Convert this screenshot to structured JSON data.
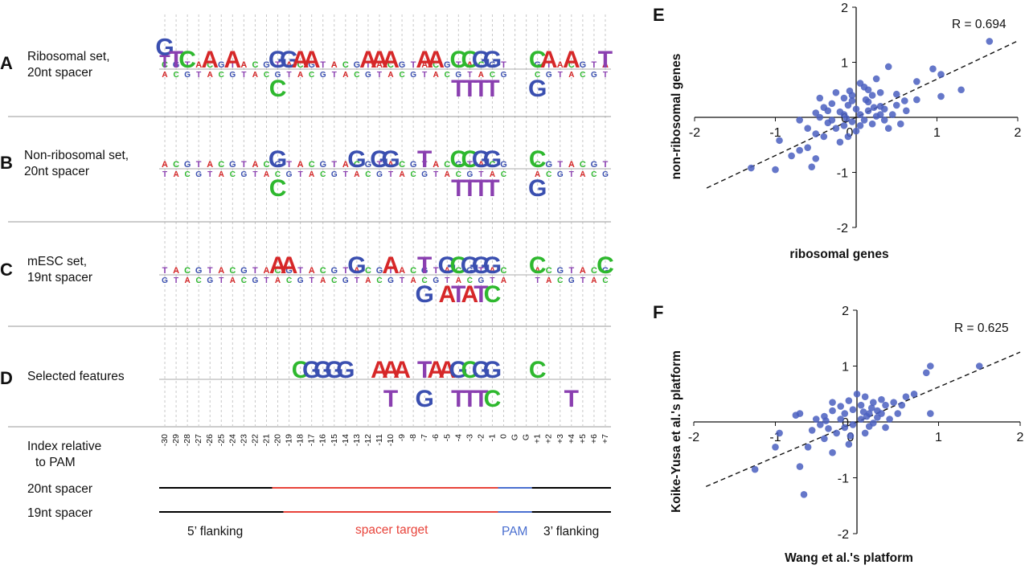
{
  "panels": {
    "A": {
      "letter": "A",
      "line1": "Ribosomal set,",
      "line2": "20nt spacer"
    },
    "B": {
      "letter": "B",
      "line1": "Non-ribosomal set,",
      "line2": "20nt spacer"
    },
    "C": {
      "letter": "C",
      "line1": "mESC set,",
      "line2": "19nt spacer"
    },
    "D": {
      "letter": "D",
      "line1": "Selected features"
    },
    "E": {
      "letter": "E"
    },
    "F": {
      "letter": "F"
    }
  },
  "index_header": {
    "line1": "Index relative",
    "line2": "to PAM"
  },
  "index_ticks": [
    "-30",
    "-29",
    "-28",
    "-27",
    "-26",
    "-25",
    "-24",
    "-23",
    "-22",
    "-21",
    "-20",
    "-19",
    "-18",
    "-17",
    "-16",
    "-15",
    "-14",
    "-13",
    "-12",
    "-11",
    "-10",
    "-9",
    "-8",
    "-7",
    "-6",
    "-5",
    "-4",
    "-3",
    "-2",
    "-1",
    "0",
    "G",
    "G",
    "+1",
    "+2",
    "+3",
    "+4",
    "+5",
    "+6",
    "+7"
  ],
  "tracks": [
    {
      "label": "20nt spacer"
    },
    {
      "label": "19nt spacer"
    }
  ],
  "region_labels": {
    "flank5": "5’ flanking",
    "spacer": "spacer target",
    "pam": "PAM",
    "flank3": "3’ flanking"
  },
  "colors": {
    "A": "#d62728",
    "C": "#3a4fb0",
    "G": "#f0a020",
    "T": "#8a3fb0",
    "Cgreen": "#2eb82e",
    "black": "#000000",
    "red": "#e8433a",
    "blue": "#4a6fd0",
    "dot": "#4a5fbf"
  },
  "logos": {
    "A": [
      {
        "pos": -30,
        "up": "GT"
      },
      {
        "pos": -29,
        "up": "T"
      },
      {
        "pos": -28,
        "up": "C"
      },
      {
        "pos": -26,
        "up": "A"
      },
      {
        "pos": -24,
        "up": "A"
      },
      {
        "pos": -20,
        "up": "G",
        "down": "C"
      },
      {
        "pos": -19,
        "up": "G"
      },
      {
        "pos": -18,
        "up": "A"
      },
      {
        "pos": -17,
        "up": "A"
      },
      {
        "pos": -12,
        "up": "A"
      },
      {
        "pos": -11,
        "up": "A"
      },
      {
        "pos": -10,
        "up": "A"
      },
      {
        "pos": -7,
        "up": "A"
      },
      {
        "pos": -6,
        "up": "A"
      },
      {
        "pos": -4,
        "up": "C",
        "down": "T"
      },
      {
        "pos": -3,
        "up": "C",
        "down": "T"
      },
      {
        "pos": -2,
        "up": "G",
        "down": "T"
      },
      {
        "pos": -1,
        "up": "G",
        "down": "T"
      },
      {
        "pos": 1,
        "up": "C",
        "down": "G"
      },
      {
        "pos": 2,
        "up": "A"
      },
      {
        "pos": 4,
        "up": "A"
      },
      {
        "pos": 7,
        "up": "T"
      }
    ],
    "B": [
      {
        "pos": -20,
        "up": "G",
        "down": "C"
      },
      {
        "pos": -13,
        "up": "G"
      },
      {
        "pos": -11,
        "up": "G"
      },
      {
        "pos": -10,
        "up": "G"
      },
      {
        "pos": -7,
        "up": "T"
      },
      {
        "pos": -4,
        "up": "C",
        "down": "T"
      },
      {
        "pos": -3,
        "up": "C",
        "down": "T"
      },
      {
        "pos": -2,
        "up": "G",
        "down": "T"
      },
      {
        "pos": -1,
        "up": "G",
        "down": "T"
      },
      {
        "pos": 1,
        "up": "C",
        "down": "G"
      }
    ],
    "C": [
      {
        "pos": -20,
        "up": "A"
      },
      {
        "pos": -19,
        "up": "A"
      },
      {
        "pos": -13,
        "up": "G"
      },
      {
        "pos": -10,
        "up": "A"
      },
      {
        "pos": -7,
        "up": "T",
        "down": "G"
      },
      {
        "pos": -5,
        "up": "G",
        "down": "A"
      },
      {
        "pos": -4,
        "up": "C",
        "down": "T"
      },
      {
        "pos": -3,
        "up": "G",
        "down": "A"
      },
      {
        "pos": -2,
        "up": "G",
        "down": "T"
      },
      {
        "pos": -1,
        "up": "G",
        "down": "C"
      },
      {
        "pos": 1,
        "up": "C"
      },
      {
        "pos": 7,
        "up": "C"
      }
    ],
    "D": [
      {
        "pos": -18,
        "up": "C"
      },
      {
        "pos": -17,
        "up": "G"
      },
      {
        "pos": -16,
        "up": "G"
      },
      {
        "pos": -15,
        "up": "G"
      },
      {
        "pos": -14,
        "up": "G"
      },
      {
        "pos": -11,
        "up": "A"
      },
      {
        "pos": -10,
        "up": "A",
        "down": "T"
      },
      {
        "pos": -9,
        "up": "A"
      },
      {
        "pos": -7,
        "up": "T",
        "down": "G"
      },
      {
        "pos": -6,
        "up": "A"
      },
      {
        "pos": -5,
        "up": "A"
      },
      {
        "pos": -4,
        "up": "G",
        "down": "T"
      },
      {
        "pos": -3,
        "up": "C",
        "down": "T"
      },
      {
        "pos": -2,
        "up": "G",
        "down": "T"
      },
      {
        "pos": -1,
        "up": "G",
        "down": "C"
      },
      {
        "pos": 1,
        "up": "C"
      },
      {
        "pos": 4,
        "down": "T"
      }
    ]
  },
  "chart_data": [
    {
      "type": "scatter",
      "panel": "E",
      "xlabel": "ribosomal genes",
      "ylabel": "non-ribosomal genes",
      "xlim": [
        -2,
        2
      ],
      "ylim": [
        -2,
        2
      ],
      "xticks": [
        "-2",
        "-1",
        "0",
        "1",
        "2"
      ],
      "yticks": [
        "2",
        "1",
        "0",
        "-1",
        "-2"
      ],
      "annotation": "R = 0.694",
      "fit": {
        "slope": 0.694,
        "intercept": 0
      },
      "points": [
        [
          1.65,
          1.38
        ],
        [
          0.95,
          0.88
        ],
        [
          1.05,
          0.78
        ],
        [
          0.75,
          0.65
        ],
        [
          0.4,
          0.92
        ],
        [
          1.3,
          0.5
        ],
        [
          1.05,
          0.38
        ],
        [
          0.75,
          0.32
        ],
        [
          0.5,
          0.22
        ],
        [
          0.35,
          0.15
        ],
        [
          0.2,
          0.4
        ],
        [
          0.15,
          0.28
        ],
        [
          0.1,
          0.55
        ],
        [
          0.05,
          0.62
        ],
        [
          -0.05,
          0.4
        ],
        [
          -0.1,
          0.22
        ],
        [
          -0.15,
          0.35
        ],
        [
          -0.2,
          0.1
        ],
        [
          -0.3,
          0.25
        ],
        [
          -0.4,
          0.18
        ],
        [
          -0.5,
          0.08
        ],
        [
          -0.45,
          0.0
        ],
        [
          -0.35,
          -0.1
        ],
        [
          -0.25,
          -0.2
        ],
        [
          -0.15,
          -0.15
        ],
        [
          -0.05,
          -0.08
        ],
        [
          0.05,
          0.05
        ],
        [
          0.15,
          0.12
        ],
        [
          0.25,
          0.02
        ],
        [
          0.35,
          -0.05
        ],
        [
          0.45,
          0.05
        ],
        [
          0.55,
          -0.12
        ],
        [
          0.0,
          -0.25
        ],
        [
          -0.1,
          -0.35
        ],
        [
          -0.2,
          -0.45
        ],
        [
          -0.4,
          -0.35
        ],
        [
          -0.5,
          -0.3
        ],
        [
          -0.6,
          -0.55
        ],
        [
          -0.7,
          -0.6
        ],
        [
          -0.8,
          -0.7
        ],
        [
          -0.55,
          -0.9
        ],
        [
          -1.0,
          -0.95
        ],
        [
          -1.3,
          -0.92
        ],
        [
          -0.95,
          -0.42
        ],
        [
          -0.5,
          -0.75
        ],
        [
          0.3,
          0.45
        ],
        [
          0.6,
          0.3
        ],
        [
          0.25,
          0.7
        ],
        [
          -0.15,
          0.05
        ],
        [
          0.1,
          -0.05
        ],
        [
          0.0,
          0.15
        ],
        [
          -0.05,
          0.3
        ],
        [
          0.2,
          -0.12
        ],
        [
          0.3,
          0.2
        ],
        [
          -0.3,
          -0.05
        ],
        [
          -0.25,
          0.45
        ],
        [
          0.4,
          -0.2
        ],
        [
          0.15,
          0.5
        ],
        [
          -0.45,
          0.35
        ],
        [
          0.05,
          -0.15
        ],
        [
          0.12,
          0.32
        ],
        [
          -0.12,
          -0.02
        ],
        [
          0.22,
          0.18
        ],
        [
          -0.35,
          0.12
        ],
        [
          0.3,
          0.05
        ],
        [
          -0.08,
          0.48
        ],
        [
          0.5,
          0.42
        ],
        [
          0.62,
          0.12
        ],
        [
          -0.6,
          -0.2
        ],
        [
          -0.7,
          -0.05
        ]
      ]
    },
    {
      "type": "scatter",
      "panel": "F",
      "xlabel": "Wang et al.'s platform",
      "ylabel": "Koike-Yusa et al.'s platform",
      "xlim": [
        -2,
        2
      ],
      "ylim": [
        -2,
        2
      ],
      "xticks": [
        "-2",
        "-1",
        "0",
        "1",
        "2"
      ],
      "yticks": [
        "2",
        "1",
        "0",
        "-1",
        "-2"
      ],
      "annotation": "R = 0.625",
      "fit": {
        "slope": 0.625,
        "intercept": 0
      },
      "points": [
        [
          1.5,
          1.0
        ],
        [
          0.9,
          1.0
        ],
        [
          0.85,
          0.88
        ],
        [
          0.9,
          0.15
        ],
        [
          0.7,
          0.5
        ],
        [
          0.6,
          0.45
        ],
        [
          0.45,
          0.35
        ],
        [
          0.35,
          0.3
        ],
        [
          0.25,
          0.2
        ],
        [
          0.15,
          0.15
        ],
        [
          0.1,
          0.45
        ],
        [
          0.0,
          0.5
        ],
        [
          -0.1,
          0.38
        ],
        [
          -0.2,
          0.28
        ],
        [
          -0.3,
          0.2
        ],
        [
          -0.4,
          0.1
        ],
        [
          -0.5,
          0.05
        ],
        [
          -0.45,
          -0.05
        ],
        [
          -0.35,
          -0.12
        ],
        [
          -0.25,
          -0.2
        ],
        [
          -0.15,
          -0.1
        ],
        [
          -0.05,
          -0.05
        ],
        [
          0.05,
          0.05
        ],
        [
          0.15,
          -0.08
        ],
        [
          0.25,
          0.08
        ],
        [
          0.35,
          -0.1
        ],
        [
          0.5,
          0.15
        ],
        [
          -0.7,
          0.15
        ],
        [
          -0.75,
          0.12
        ],
        [
          -0.95,
          -0.2
        ],
        [
          -1.0,
          -0.45
        ],
        [
          -0.6,
          -0.45
        ],
        [
          -1.25,
          -0.85
        ],
        [
          -0.65,
          -1.3
        ],
        [
          -0.7,
          -0.8
        ],
        [
          -0.3,
          -0.55
        ],
        [
          -0.4,
          -0.3
        ],
        [
          0.2,
          0.35
        ],
        [
          0.3,
          0.15
        ],
        [
          -0.05,
          0.22
        ],
        [
          0.1,
          -0.2
        ],
        [
          -0.2,
          0.05
        ],
        [
          0.05,
          0.3
        ],
        [
          0.4,
          0.05
        ],
        [
          -0.15,
          0.15
        ],
        [
          0.2,
          -0.02
        ],
        [
          -0.3,
          0.35
        ],
        [
          0.12,
          0.1
        ],
        [
          -0.08,
          -0.25
        ],
        [
          0.55,
          0.3
        ],
        [
          -0.55,
          -0.15
        ],
        [
          0.3,
          0.4
        ],
        [
          -0.1,
          -0.4
        ],
        [
          0.08,
          0.18
        ],
        [
          -0.38,
          0.02
        ],
        [
          0.18,
          0.25
        ]
      ]
    }
  ]
}
